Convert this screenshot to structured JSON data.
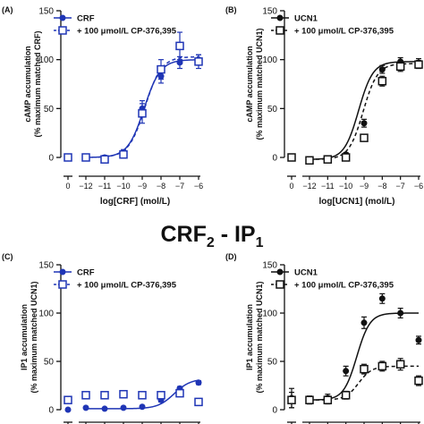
{
  "mid_title": {
    "main": "CRF",
    "sub": "2",
    "rest": " - IP",
    "sub2": "1"
  },
  "chart_data": [
    {
      "type": "line",
      "panel_label": "(A)",
      "ylabel": [
        "cAMP accumulation",
        "(% maximum matched CRF)"
      ],
      "xlabel": "log[CRF] (mol/L)",
      "ylim": [
        0,
        150
      ],
      "xlim": [
        -12,
        -6
      ],
      "yticks": [
        "0",
        "50",
        "100",
        "150"
      ],
      "xticks": [
        "0",
        "−12",
        "−11",
        "−10",
        "−9",
        "−8",
        "−7",
        "−6"
      ],
      "color": "#1f35b5",
      "legend": [
        "CRF",
        "+ 100 μmol/L CP-376,395"
      ],
      "series": [
        {
          "name": "CRF",
          "marker": "filled-circle",
          "line": "solid",
          "basal": {
            "y": 0,
            "err": 3
          },
          "x": [
            -12,
            -11,
            -10,
            -9,
            -8,
            -7,
            -6
          ],
          "y": [
            0,
            0,
            5,
            50,
            83,
            97,
            100
          ],
          "err": [
            2,
            2,
            3,
            8,
            7,
            6,
            5
          ],
          "fit": {
            "bottom": 0,
            "top": 100,
            "logec50": -8.9,
            "hill": 1
          }
        },
        {
          "name": "+ 100 μmol/L CP-376,395",
          "marker": "open-square",
          "line": "dashed",
          "basal": {
            "y": 0,
            "err": 3
          },
          "x": [
            -12,
            -11,
            -10,
            -9,
            -8,
            -7,
            -6
          ],
          "y": [
            0,
            -2,
            3,
            45,
            90,
            114,
            98
          ],
          "err": [
            2,
            2,
            3,
            10,
            10,
            14,
            7
          ],
          "fit": {
            "bottom": 0,
            "top": 103,
            "logec50": -8.85,
            "hill": 1
          }
        }
      ]
    },
    {
      "type": "line",
      "panel_label": "(B)",
      "ylabel": [
        "cAMP accumulation",
        "(% maximum matched UCN1)"
      ],
      "xlabel": "log[UCN1] (mol/L)",
      "ylim": [
        0,
        150
      ],
      "xlim": [
        -12,
        -6
      ],
      "yticks": [
        "0",
        "50",
        "100",
        "150"
      ],
      "xticks": [
        "0",
        "−12",
        "−11",
        "−10",
        "−9",
        "−8",
        "−7",
        "−6"
      ],
      "color": "#111111",
      "legend": [
        "UCN1",
        "+ 100 μmol/L CP-376,395"
      ],
      "series": [
        {
          "name": "UCN1",
          "marker": "filled-circle",
          "line": "solid",
          "basal": {
            "y": 0,
            "err": 2
          },
          "x": [
            -12,
            -11,
            -10,
            -9,
            -8,
            -7,
            -6
          ],
          "y": [
            -3,
            -2,
            3,
            35,
            90,
            98,
            97
          ],
          "err": [
            2,
            2,
            2,
            4,
            4,
            4,
            4
          ],
          "fit": {
            "bottom": -2,
            "top": 98,
            "logec50": -9.3,
            "hill": 1.1
          }
        },
        {
          "name": "+ 100 μmol/L CP-376,395",
          "marker": "open-square",
          "line": "dashed",
          "basal": {
            "y": 0,
            "err": 2
          },
          "x": [
            -12,
            -11,
            -10,
            -9,
            -8,
            -7,
            -6
          ],
          "y": [
            -3,
            -2,
            0,
            20,
            78,
            93,
            95
          ],
          "err": [
            2,
            2,
            2,
            3,
            5,
            5,
            4
          ],
          "fit": {
            "bottom": -2,
            "top": 96,
            "logec50": -9.05,
            "hill": 1.1
          }
        }
      ]
    },
    {
      "type": "line",
      "panel_label": "(C)",
      "ylabel": [
        "IP1 accumulation",
        "(% maximum matched UCN1)"
      ],
      "xlabel": "",
      "ylim": [
        0,
        150
      ],
      "xlim": [
        -12,
        -6
      ],
      "yticks": [
        "0",
        "50",
        "100",
        "150"
      ],
      "xticks": [],
      "color": "#1f35b5",
      "legend": [
        "CRF",
        "+ 100 μmol/L CP-376,395"
      ],
      "series": [
        {
          "name": "CRF",
          "marker": "filled-circle",
          "line": "solid",
          "basal": {
            "y": 0,
            "err": 0
          },
          "x": [
            -12,
            -11,
            -10,
            -9,
            -8,
            -7,
            -6
          ],
          "y": [
            2,
            1,
            2,
            3,
            10,
            22,
            28
          ],
          "err": [
            1,
            1,
            1,
            1,
            2,
            2,
            2
          ],
          "fit": {
            "bottom": 1,
            "top": 32,
            "logec50": -7.3,
            "hill": 1
          }
        },
        {
          "name": "+ 100 μmol/L CP-376,395",
          "marker": "open-square",
          "line": "none",
          "basal": {
            "y": 10,
            "err": 0
          },
          "x": [
            -12,
            -11,
            -10,
            -9,
            -8,
            -7,
            -6
          ],
          "y": [
            15,
            15,
            16,
            15,
            15,
            17,
            8
          ],
          "err": [
            1,
            1,
            1,
            1,
            1,
            1,
            1
          ]
        }
      ]
    },
    {
      "type": "line",
      "panel_label": "(D)",
      "ylabel": [
        "IP1 accumulation",
        "(% maximum matched UCN1)"
      ],
      "xlabel": "",
      "ylim": [
        0,
        150
      ],
      "xlim": [
        -12,
        -6
      ],
      "yticks": [
        "0",
        "50",
        "100",
        "150"
      ],
      "xticks": [],
      "color": "#111111",
      "legend": [
        "UCN1",
        "+ 100 μmol/L CP-376,395"
      ],
      "series": [
        {
          "name": "UCN1",
          "marker": "filled-circle",
          "line": "solid",
          "basal": {
            "y": 12,
            "err": 10
          },
          "x": [
            -12,
            -11,
            -10,
            -9,
            -8,
            -7,
            -6
          ],
          "y": [
            10,
            12,
            40,
            90,
            115,
            100,
            72
          ],
          "err": [
            4,
            4,
            5,
            6,
            5,
            5,
            4
          ],
          "fit": {
            "bottom": 10,
            "top": 100,
            "logec50": -9.4,
            "hill": 1.2
          }
        },
        {
          "name": "+ 100 μmol/L CP-376,395",
          "marker": "open-square",
          "line": "dashed",
          "basal": {
            "y": 10,
            "err": 8
          },
          "x": [
            -12,
            -11,
            -10,
            -9,
            -8,
            -7,
            -6
          ],
          "y": [
            10,
            10,
            15,
            42,
            45,
            47,
            30
          ],
          "err": [
            4,
            4,
            4,
            5,
            5,
            6,
            5
          ],
          "fit": {
            "bottom": 10,
            "top": 45,
            "logec50": -9.3,
            "hill": 1.2
          }
        }
      ]
    }
  ]
}
